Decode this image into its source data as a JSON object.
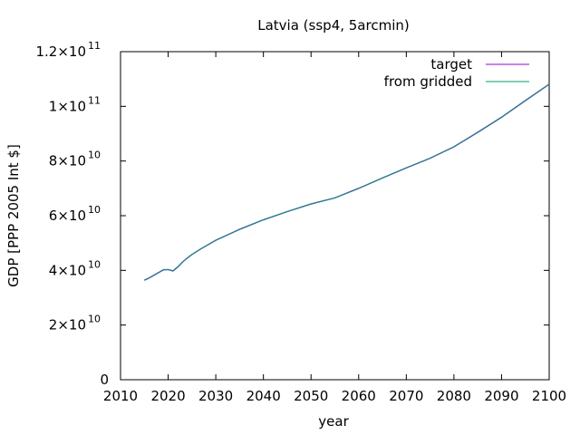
{
  "chart_data": {
    "type": "line",
    "title": "Latvia (ssp4, 5arcmin)",
    "xlabel": "year",
    "ylabel": "GDP [PPP 2005 Int $]",
    "xlim": [
      2010,
      2100
    ],
    "ylim": [
      0,
      120000000000.0
    ],
    "x_ticks": [
      2010,
      2020,
      2030,
      2040,
      2050,
      2060,
      2070,
      2080,
      2090,
      2100
    ],
    "x_tick_labels": [
      "2010",
      "2020",
      "2030",
      "2040",
      "2050",
      "2060",
      "2070",
      "2080",
      "2090",
      "2100"
    ],
    "y_ticks": [
      {
        "value": 0,
        "mantissa": "0",
        "exponent": ""
      },
      {
        "value": 20000000000.0,
        "mantissa": "2×10",
        "exponent": "10"
      },
      {
        "value": 40000000000.0,
        "mantissa": "4×10",
        "exponent": "10"
      },
      {
        "value": 60000000000.0,
        "mantissa": "6×10",
        "exponent": "10"
      },
      {
        "value": 80000000000.0,
        "mantissa": "8×10",
        "exponent": "10"
      },
      {
        "value": 100000000000.0,
        "mantissa": "1×10",
        "exponent": "11"
      },
      {
        "value": 120000000000.0,
        "mantissa": "1.2×10",
        "exponent": "11"
      }
    ],
    "grid": false,
    "legend_position": "top-right",
    "x": [
      2015,
      2016,
      2017,
      2018,
      2019,
      2020,
      2021,
      2022,
      2023,
      2024,
      2025,
      2027,
      2030,
      2035,
      2040,
      2045,
      2050,
      2055,
      2060,
      2065,
      2070,
      2075,
      2080,
      2085,
      2090,
      2095,
      2100
    ],
    "series": [
      {
        "name": "target",
        "color": "#9400d3",
        "values": [
          36400000000.0,
          37200000000.0,
          38200000000.0,
          39200000000.0,
          40200000000.0,
          40300000000.0,
          39800000000.0,
          41200000000.0,
          43000000000.0,
          44500000000.0,
          45800000000.0,
          48000000000.0,
          51000000000.0,
          55000000000.0,
          58500000000.0,
          61500000000.0,
          64300000000.0,
          66500000000.0,
          70000000000.0,
          73800000000.0,
          77500000000.0,
          81000000000.0,
          85200000000.0,
          90500000000.0,
          96000000000.0,
          102100000000.0,
          108100000000.0
        ]
      },
      {
        "name": "from gridded",
        "color": "#009e73",
        "values": [
          36400000000.0,
          37200000000.0,
          38200000000.0,
          39200000000.0,
          40200000000.0,
          40300000000.0,
          39800000000.0,
          41200000000.0,
          43000000000.0,
          44500000000.0,
          45800000000.0,
          48000000000.0,
          51000000000.0,
          55000000000.0,
          58500000000.0,
          61500000000.0,
          64300000000.0,
          66500000000.0,
          70000000000.0,
          73800000000.0,
          77500000000.0,
          81000000000.0,
          85200000000.0,
          90500000000.0,
          96000000000.0,
          102100000000.0,
          108100000000.0
        ]
      }
    ]
  }
}
